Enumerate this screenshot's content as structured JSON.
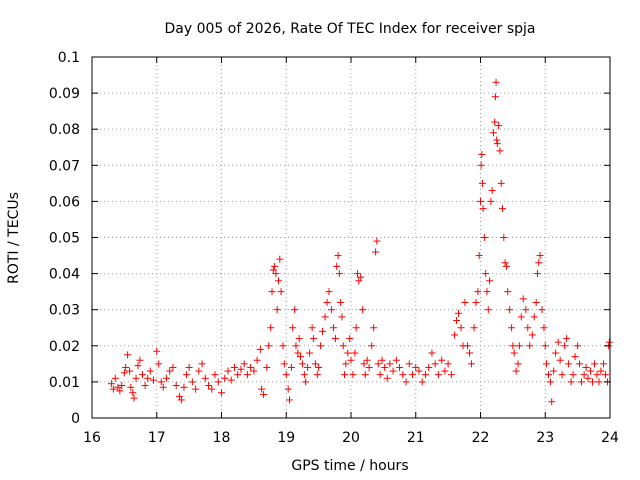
{
  "chart_data": {
    "type": "scatter",
    "title": "Day 005 of 2026, Rate Of TEC Index for receiver spja",
    "xlabel": "GPS time / hours",
    "ylabel": "ROTI / TECUs",
    "xlim": [
      16,
      24
    ],
    "ylim": [
      0,
      0.1
    ],
    "xticks": [
      "16",
      "17",
      "18",
      "19",
      "20",
      "21",
      "22",
      "23",
      "24"
    ],
    "yticks": [
      "0",
      "0.01",
      "0.02",
      "0.03",
      "0.04",
      "0.05",
      "0.06",
      "0.07",
      "0.08",
      "0.09",
      "0.1"
    ],
    "grid": true,
    "marker": "+",
    "color": "#ff0000",
    "series": [
      {
        "name": "spja",
        "points": [
          [
            16.3,
            0.0095
          ],
          [
            16.33,
            0.008
          ],
          [
            16.36,
            0.011
          ],
          [
            16.4,
            0.0085
          ],
          [
            16.43,
            0.0075
          ],
          [
            16.46,
            0.009
          ],
          [
            16.5,
            0.0125
          ],
          [
            16.52,
            0.014
          ],
          [
            16.55,
            0.0175
          ],
          [
            16.58,
            0.013
          ],
          [
            16.6,
            0.0085
          ],
          [
            16.63,
            0.007
          ],
          [
            16.65,
            0.0055
          ],
          [
            16.68,
            0.011
          ],
          [
            16.71,
            0.0145
          ],
          [
            16.74,
            0.016
          ],
          [
            16.78,
            0.012
          ],
          [
            16.82,
            0.009
          ],
          [
            16.86,
            0.011
          ],
          [
            16.9,
            0.013
          ],
          [
            16.95,
            0.0105
          ],
          [
            17.0,
            0.0185
          ],
          [
            17.03,
            0.015
          ],
          [
            17.07,
            0.01
          ],
          [
            17.1,
            0.0085
          ],
          [
            17.15,
            0.011
          ],
          [
            17.2,
            0.013
          ],
          [
            17.25,
            0.014
          ],
          [
            17.3,
            0.009
          ],
          [
            17.35,
            0.006
          ],
          [
            17.38,
            0.005
          ],
          [
            17.42,
            0.0085
          ],
          [
            17.46,
            0.012
          ],
          [
            17.5,
            0.014
          ],
          [
            17.55,
            0.01
          ],
          [
            17.6,
            0.008
          ],
          [
            17.65,
            0.013
          ],
          [
            17.7,
            0.015
          ],
          [
            17.75,
            0.011
          ],
          [
            17.8,
            0.009
          ],
          [
            17.85,
            0.008
          ],
          [
            17.9,
            0.012
          ],
          [
            17.95,
            0.01
          ],
          [
            18.0,
            0.007
          ],
          [
            18.05,
            0.011
          ],
          [
            18.1,
            0.013
          ],
          [
            18.15,
            0.0105
          ],
          [
            18.2,
            0.014
          ],
          [
            18.25,
            0.012
          ],
          [
            18.3,
            0.0135
          ],
          [
            18.35,
            0.015
          ],
          [
            18.4,
            0.012
          ],
          [
            18.45,
            0.014
          ],
          [
            18.5,
            0.013
          ],
          [
            18.55,
            0.016
          ],
          [
            18.6,
            0.019
          ],
          [
            18.62,
            0.008
          ],
          [
            18.65,
            0.0065
          ],
          [
            18.7,
            0.014
          ],
          [
            18.73,
            0.02
          ],
          [
            18.76,
            0.025
          ],
          [
            18.78,
            0.035
          ],
          [
            18.8,
            0.041
          ],
          [
            18.82,
            0.042
          ],
          [
            18.84,
            0.04
          ],
          [
            18.86,
            0.03
          ],
          [
            18.88,
            0.038
          ],
          [
            18.9,
            0.044
          ],
          [
            18.92,
            0.035
          ],
          [
            18.95,
            0.02
          ],
          [
            18.97,
            0.015
          ],
          [
            19.0,
            0.012
          ],
          [
            19.03,
            0.008
          ],
          [
            19.05,
            0.005
          ],
          [
            19.08,
            0.014
          ],
          [
            19.1,
            0.025
          ],
          [
            19.13,
            0.03
          ],
          [
            19.15,
            0.02
          ],
          [
            19.18,
            0.018
          ],
          [
            19.2,
            0.022
          ],
          [
            19.22,
            0.017
          ],
          [
            19.25,
            0.015
          ],
          [
            19.28,
            0.012
          ],
          [
            19.3,
            0.01
          ],
          [
            19.33,
            0.014
          ],
          [
            19.36,
            0.018
          ],
          [
            19.4,
            0.025
          ],
          [
            19.42,
            0.022
          ],
          [
            19.45,
            0.015
          ],
          [
            19.48,
            0.012
          ],
          [
            19.5,
            0.014
          ],
          [
            19.53,
            0.02
          ],
          [
            19.56,
            0.024
          ],
          [
            19.6,
            0.028
          ],
          [
            19.63,
            0.032
          ],
          [
            19.66,
            0.035
          ],
          [
            19.7,
            0.03
          ],
          [
            19.73,
            0.025
          ],
          [
            19.76,
            0.022
          ],
          [
            19.78,
            0.042
          ],
          [
            19.8,
            0.045
          ],
          [
            19.82,
            0.04
          ],
          [
            19.84,
            0.032
          ],
          [
            19.86,
            0.028
          ],
          [
            19.88,
            0.02
          ],
          [
            19.9,
            0.012
          ],
          [
            19.92,
            0.015
          ],
          [
            19.95,
            0.018
          ],
          [
            19.98,
            0.022
          ],
          [
            20.0,
            0.016
          ],
          [
            20.03,
            0.012
          ],
          [
            20.06,
            0.018
          ],
          [
            20.08,
            0.025
          ],
          [
            20.1,
            0.04
          ],
          [
            20.12,
            0.038
          ],
          [
            20.15,
            0.039
          ],
          [
            20.18,
            0.03
          ],
          [
            20.2,
            0.015
          ],
          [
            20.22,
            0.012
          ],
          [
            20.25,
            0.016
          ],
          [
            20.28,
            0.014
          ],
          [
            20.32,
            0.02
          ],
          [
            20.35,
            0.025
          ],
          [
            20.38,
            0.046
          ],
          [
            20.4,
            0.049
          ],
          [
            20.42,
            0.015
          ],
          [
            20.45,
            0.012
          ],
          [
            20.48,
            0.016
          ],
          [
            20.52,
            0.014
          ],
          [
            20.56,
            0.011
          ],
          [
            20.6,
            0.015
          ],
          [
            20.65,
            0.013
          ],
          [
            20.7,
            0.016
          ],
          [
            20.75,
            0.014
          ],
          [
            20.8,
            0.012
          ],
          [
            20.85,
            0.01
          ],
          [
            20.9,
            0.015
          ],
          [
            20.95,
            0.012
          ],
          [
            21.0,
            0.014
          ],
          [
            21.05,
            0.013
          ],
          [
            21.1,
            0.01
          ],
          [
            21.15,
            0.012
          ],
          [
            21.2,
            0.014
          ],
          [
            21.25,
            0.018
          ],
          [
            21.3,
            0.015
          ],
          [
            21.35,
            0.012
          ],
          [
            21.4,
            0.016
          ],
          [
            21.45,
            0.013
          ],
          [
            21.5,
            0.015
          ],
          [
            21.55,
            0.012
          ],
          [
            21.6,
            0.023
          ],
          [
            21.63,
            0.027
          ],
          [
            21.66,
            0.029
          ],
          [
            21.7,
            0.025
          ],
          [
            21.73,
            0.02
          ],
          [
            21.76,
            0.032
          ],
          [
            21.8,
            0.02
          ],
          [
            21.83,
            0.018
          ],
          [
            21.86,
            0.015
          ],
          [
            21.9,
            0.025
          ],
          [
            21.93,
            0.032
          ],
          [
            21.96,
            0.035
          ],
          [
            21.98,
            0.045
          ],
          [
            22.0,
            0.06
          ],
          [
            22.01,
            0.07
          ],
          [
            22.02,
            0.073
          ],
          [
            22.03,
            0.065
          ],
          [
            22.04,
            0.058
          ],
          [
            22.06,
            0.05
          ],
          [
            22.08,
            0.04
          ],
          [
            22.1,
            0.035
          ],
          [
            22.12,
            0.03
          ],
          [
            22.14,
            0.038
          ],
          [
            22.16,
            0.06
          ],
          [
            22.18,
            0.063
          ],
          [
            22.2,
            0.079
          ],
          [
            22.22,
            0.082
          ],
          [
            22.23,
            0.089
          ],
          [
            22.24,
            0.093
          ],
          [
            22.25,
            0.077
          ],
          [
            22.26,
            0.076
          ],
          [
            22.28,
            0.081
          ],
          [
            22.3,
            0.074
          ],
          [
            22.32,
            0.065
          ],
          [
            22.34,
            0.058
          ],
          [
            22.36,
            0.05
          ],
          [
            22.38,
            0.043
          ],
          [
            22.4,
            0.042
          ],
          [
            22.42,
            0.035
          ],
          [
            22.45,
            0.03
          ],
          [
            22.48,
            0.025
          ],
          [
            22.5,
            0.02
          ],
          [
            22.52,
            0.018
          ],
          [
            22.55,
            0.013
          ],
          [
            22.58,
            0.015
          ],
          [
            22.6,
            0.02
          ],
          [
            22.63,
            0.028
          ],
          [
            22.66,
            0.033
          ],
          [
            22.7,
            0.03
          ],
          [
            22.73,
            0.025
          ],
          [
            22.76,
            0.02
          ],
          [
            22.8,
            0.023
          ],
          [
            22.83,
            0.028
          ],
          [
            22.86,
            0.032
          ],
          [
            22.88,
            0.04
          ],
          [
            22.9,
            0.043
          ],
          [
            22.92,
            0.045
          ],
          [
            22.95,
            0.03
          ],
          [
            22.98,
            0.025
          ],
          [
            23.0,
            0.02
          ],
          [
            23.02,
            0.015
          ],
          [
            23.05,
            0.012
          ],
          [
            23.08,
            0.01
          ],
          [
            23.1,
            0.0045
          ],
          [
            23.13,
            0.013
          ],
          [
            23.16,
            0.018
          ],
          [
            23.2,
            0.021
          ],
          [
            23.23,
            0.016
          ],
          [
            23.26,
            0.012
          ],
          [
            23.3,
            0.02
          ],
          [
            23.33,
            0.022
          ],
          [
            23.36,
            0.015
          ],
          [
            23.4,
            0.01
          ],
          [
            23.43,
            0.012
          ],
          [
            23.46,
            0.017
          ],
          [
            23.5,
            0.02
          ],
          [
            23.53,
            0.015
          ],
          [
            23.56,
            0.01
          ],
          [
            23.6,
            0.012
          ],
          [
            23.63,
            0.014
          ],
          [
            23.66,
            0.011
          ],
          [
            23.7,
            0.013
          ],
          [
            23.73,
            0.01
          ],
          [
            23.76,
            0.015
          ],
          [
            23.8,
            0.012
          ],
          [
            23.83,
            0.01
          ],
          [
            23.86,
            0.013
          ],
          [
            23.9,
            0.015
          ],
          [
            23.93,
            0.012
          ],
          [
            23.96,
            0.01
          ],
          [
            23.98,
            0.02
          ],
          [
            23.99,
            0.021
          ]
        ]
      }
    ]
  }
}
